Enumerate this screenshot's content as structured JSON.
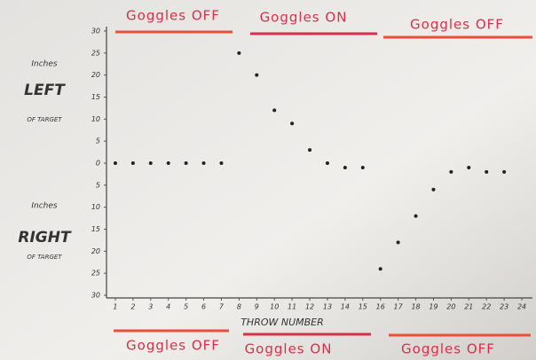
{
  "chart_data": {
    "type": "scatter",
    "top_labels": [
      "Goggles OFF",
      "Goggles ON",
      "Goggles OFF"
    ],
    "bottom_labels": [
      "Goggles OFF",
      "Goggles ON",
      "Goggles OFF"
    ],
    "left_labels": [
      "Inches",
      "LEFT",
      "OF TARGET"
    ],
    "right_labels": [
      "Inches",
      "RIGHT",
      "OF TARGET"
    ],
    "x_label": "THROW NUMBER",
    "x": [
      1,
      2,
      3,
      4,
      5,
      6,
      7,
      8,
      9,
      10,
      11,
      12,
      13,
      14,
      15,
      16,
      17,
      18,
      19,
      20,
      21,
      22,
      23,
      24
    ],
    "values": [
      0,
      0,
      0,
      0,
      0,
      0,
      0,
      25,
      20,
      12,
      9,
      3,
      0,
      -1,
      -1,
      -24,
      -18,
      -12,
      -6,
      -2,
      -1,
      -2,
      -2,
      null
    ],
    "color": "#222222",
    "xlim": [
      0.5,
      24.5
    ],
    "xticks": [
      1,
      2,
      3,
      4,
      5,
      6,
      7,
      8,
      9,
      10,
      11,
      12,
      13,
      14,
      15,
      16,
      17,
      18,
      19,
      20,
      21,
      22,
      23,
      24
    ],
    "ylim": [
      -30,
      30
    ],
    "yticks": [
      {
        "value": -30,
        "label": "30"
      },
      {
        "value": -25,
        "label": "25"
      },
      {
        "value": -20,
        "label": "20"
      },
      {
        "value": -15,
        "label": "15"
      },
      {
        "value": -10,
        "label": "10"
      },
      {
        "value": -5,
        "label": "5"
      },
      0,
      5,
      10,
      15,
      20,
      25,
      30
    ],
    "grid": false
  }
}
